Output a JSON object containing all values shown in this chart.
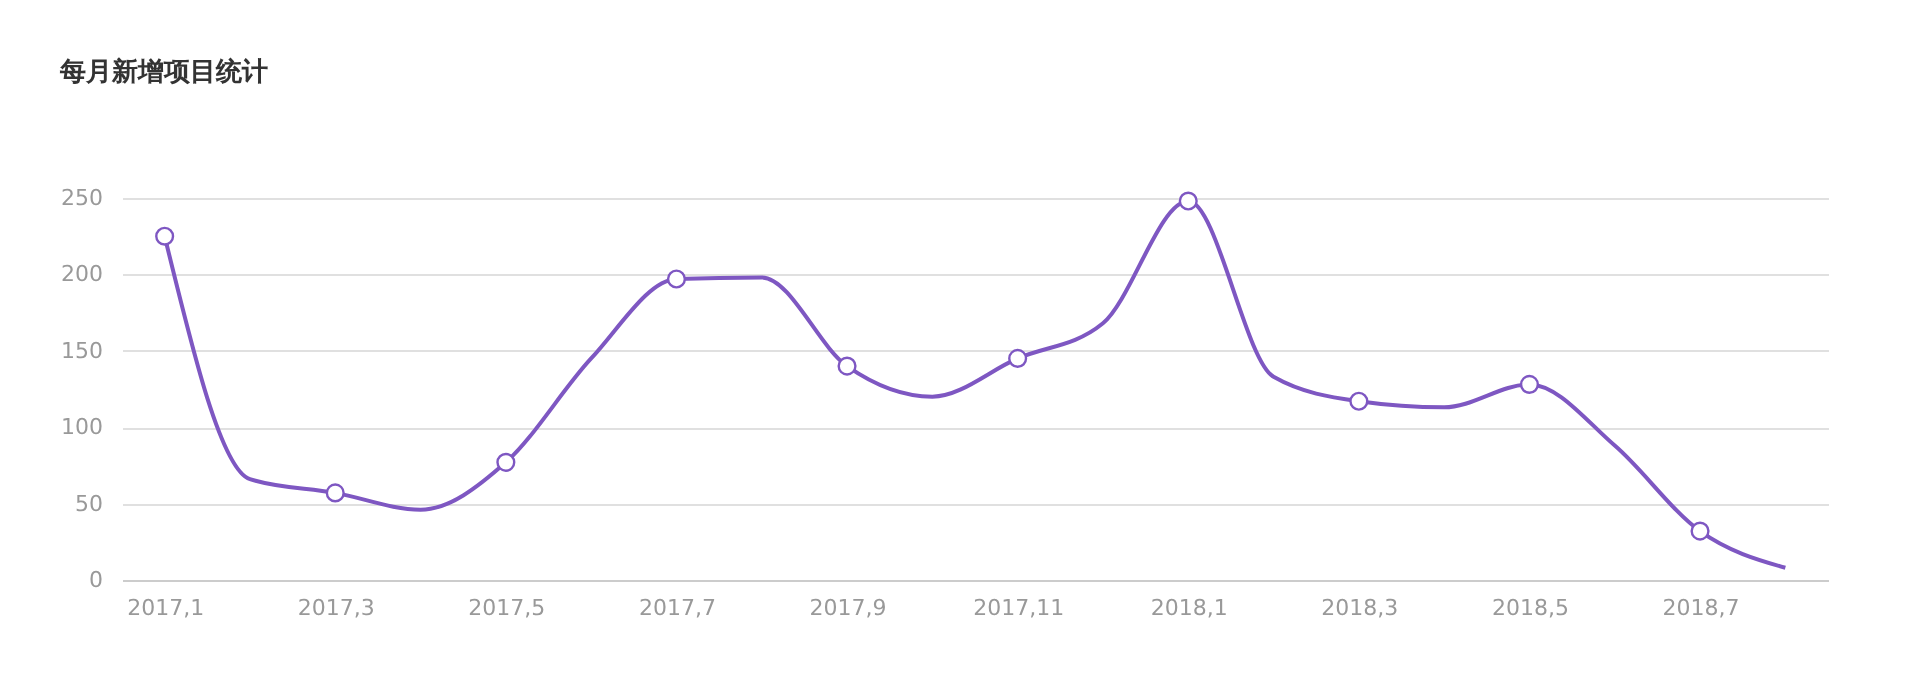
{
  "chart_data": {
    "type": "line",
    "title": "每月新增项目统计",
    "categories": [
      "2017,1",
      null,
      "2017,3",
      null,
      "2017,5",
      null,
      "2017,7",
      null,
      "2017,9",
      null,
      "2017,11",
      null,
      "2018,1",
      null,
      "2018,3",
      null,
      "2018,5",
      null,
      "2018,7",
      null
    ],
    "series": [
      {
        "color": "#7e57c2",
        "values": [
          225,
          66,
          57,
          46,
          77,
          145,
          197,
          198,
          140,
          120,
          145,
          168,
          248,
          133,
          117,
          113,
          128,
          88,
          32,
          8
        ]
      }
    ],
    "ylim": [
      0,
      250
    ],
    "yticks": [
      0,
      50,
      100,
      150,
      200,
      250
    ],
    "grid": "y",
    "marker": "circle",
    "line_style": "solid"
  }
}
